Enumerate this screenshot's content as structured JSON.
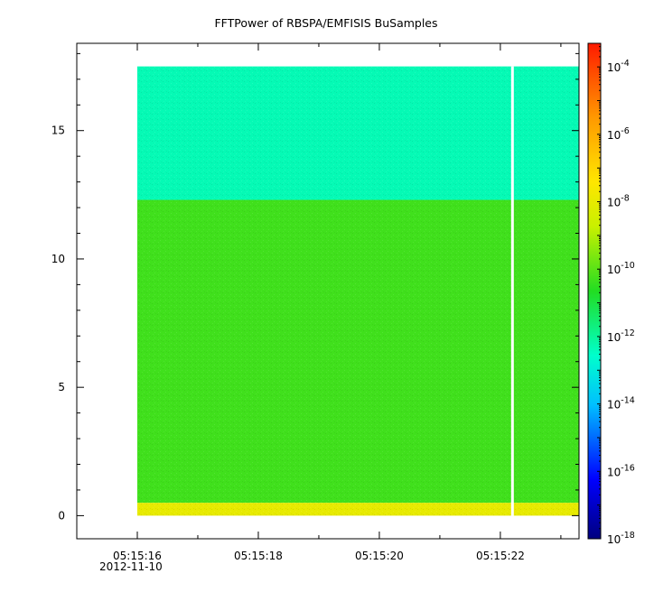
{
  "chart_data": {
    "type": "heatmap",
    "title": "FFTPower of RBSPA/EMFISIS  BuSamples",
    "x_ticks": [
      "05:15:16",
      "05:15:18",
      "05:15:20",
      "05:15:22"
    ],
    "x_date_label": "2012-11-10",
    "x_range_seconds": [
      15.0,
      23.3
    ],
    "data_x_range_seconds": [
      16.0,
      23.3
    ],
    "gap_at_seconds": 22.2,
    "y_ticks": [
      0,
      5,
      10,
      15
    ],
    "ylim": [
      -0.9,
      18.4
    ],
    "data_y_max": 17.5,
    "colorbar": {
      "scale": "log",
      "range_exponents": [
        -18,
        -3.3
      ],
      "tick_exponents": [
        -18,
        -16,
        -14,
        -12,
        -10,
        -8,
        -6,
        -4
      ],
      "tick_base": "10"
    },
    "bands": [
      {
        "y_from": 12.3,
        "y_to": 17.5,
        "power_exponent": -12.3
      },
      {
        "y_from": 0.5,
        "y_to": 12.3,
        "power_exponent": -10.3
      },
      {
        "y_from": 0.0,
        "y_to": 0.5,
        "power_exponent": -8.0
      }
    ],
    "colors": {
      "high": "#ff2200",
      "mid_high": "#ffe600",
      "mid": "#22dd22",
      "mid_low": "#22ddaa",
      "low_cyan": "#00ddff",
      "low": "#0022ff",
      "min": "#000099"
    }
  }
}
